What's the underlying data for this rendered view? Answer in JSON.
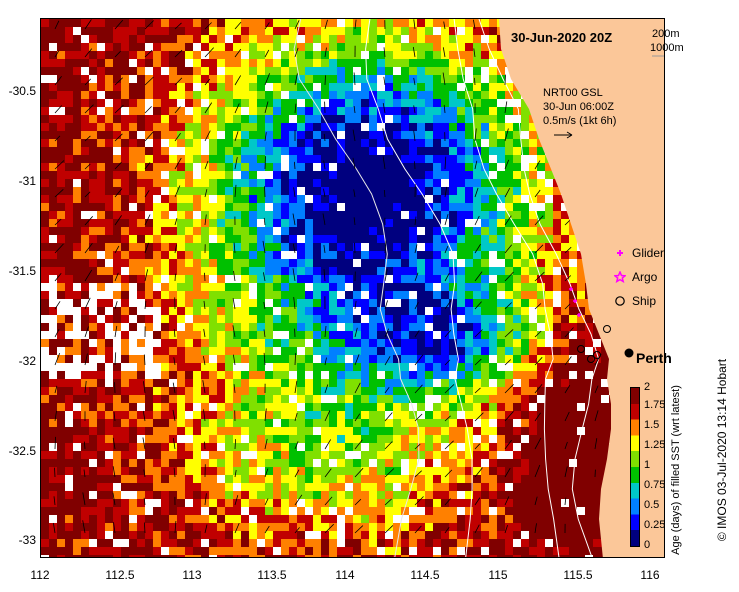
{
  "map": {
    "title": "30-Jun-2020 20Z",
    "depth_contours": [
      "200m",
      "1000m"
    ],
    "current_source": "NRT00 GSL",
    "current_time": "30-Jun 06:00Z",
    "scale_arrow": "0.5m/s (1kt 6h)",
    "place_label": "Perth",
    "legend": [
      {
        "label": "Glider",
        "color": "#ff00ff",
        "icon": "plus-icon"
      },
      {
        "label": "Argo",
        "color": "#ff00ff",
        "icon": "star-icon"
      },
      {
        "label": "Ship",
        "color": "#000000",
        "icon": "circle-icon"
      }
    ],
    "credit": "© IMOS 03-Jul-2020 13:14 Hobart",
    "colors": {
      "land": "#fbc799",
      "missing": "#ffffff"
    }
  },
  "axes": {
    "x_ticks": [
      "112",
      "112.5",
      "113",
      "113.5",
      "114",
      "114.5",
      "115",
      "115.5",
      "116"
    ],
    "y_ticks": [
      "-30.5",
      "-31",
      "-31.5",
      "-32",
      "-32.5",
      "-33"
    ],
    "x_range": [
      112,
      116.1
    ],
    "y_range": [
      -30.12,
      -33.12
    ]
  },
  "colorbar": {
    "label": "Age (days) of filled SST (wrt latest)",
    "ticks": [
      "0",
      "0.25",
      "0.5",
      "0.75",
      "1",
      "1.25",
      "1.5",
      "1.75",
      "2"
    ],
    "range": [
      0,
      2
    ],
    "colors": [
      "#00007f",
      "#0000ff",
      "#0080ff",
      "#00c8c8",
      "#00c000",
      "#80e000",
      "#ffff00",
      "#ff8000",
      "#c00000",
      "#800000"
    ]
  }
}
